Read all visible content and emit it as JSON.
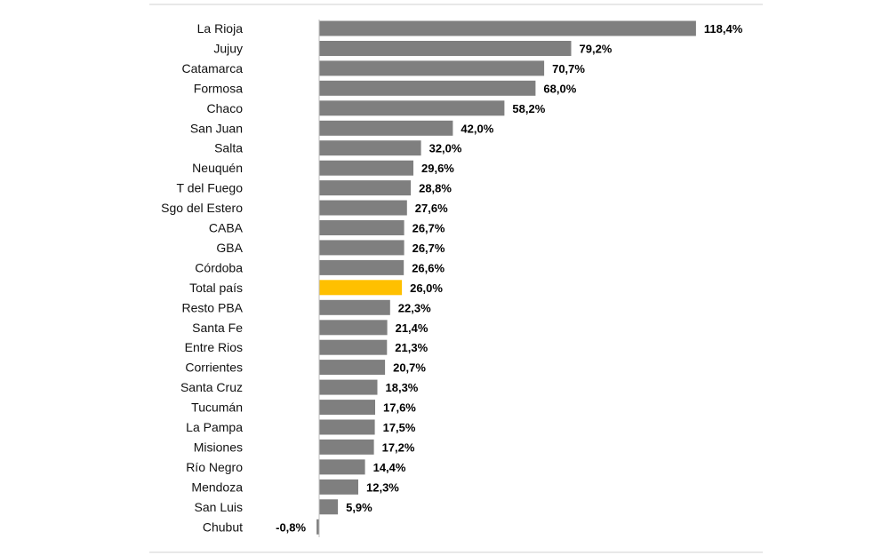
{
  "colors": {
    "bar": "#7f7f7f",
    "highlight": "#ffc000",
    "rule": "#d0d0d0",
    "axis": "#bfbfbf"
  },
  "chart_data": {
    "type": "bar",
    "orientation": "horizontal",
    "title": "",
    "xlabel": "",
    "ylabel": "",
    "grid": false,
    "legend": "none",
    "xlim": [
      -0.8,
      118.4
    ],
    "highlight_category": "Total país",
    "categories": [
      "La Rioja",
      "Jujuy",
      "Catamarca",
      "Formosa",
      "Chaco",
      "San Juan",
      "Salta",
      "Neuquén",
      "T del Fuego",
      "Sgo del Estero",
      "CABA",
      "GBA",
      "Córdoba",
      "Total país",
      "Resto PBA",
      "Santa Fe",
      "Entre Rios",
      "Corrientes",
      "Santa Cruz",
      "Tucumán",
      "La Pampa",
      "Misiones",
      "Río Negro",
      "Mendoza",
      "San Luis",
      "Chubut"
    ],
    "values": [
      118.4,
      79.2,
      70.7,
      68.0,
      58.2,
      42.0,
      32.0,
      29.6,
      28.8,
      27.6,
      26.7,
      26.7,
      26.6,
      26.0,
      22.3,
      21.4,
      21.3,
      20.7,
      18.3,
      17.6,
      17.5,
      17.2,
      14.4,
      12.3,
      5.9,
      -0.8
    ],
    "value_labels": [
      "118,4%",
      "79,2%",
      "70,7%",
      "68,0%",
      "58,2%",
      "42,0%",
      "32,0%",
      "29,6%",
      "28,8%",
      "27,6%",
      "26,7%",
      "26,7%",
      "26,6%",
      "26,0%",
      "22,3%",
      "21,4%",
      "21,3%",
      "20,7%",
      "18,3%",
      "17,6%",
      "17,5%",
      "17,2%",
      "14,4%",
      "12,3%",
      "5,9%",
      "-0,8%"
    ]
  }
}
